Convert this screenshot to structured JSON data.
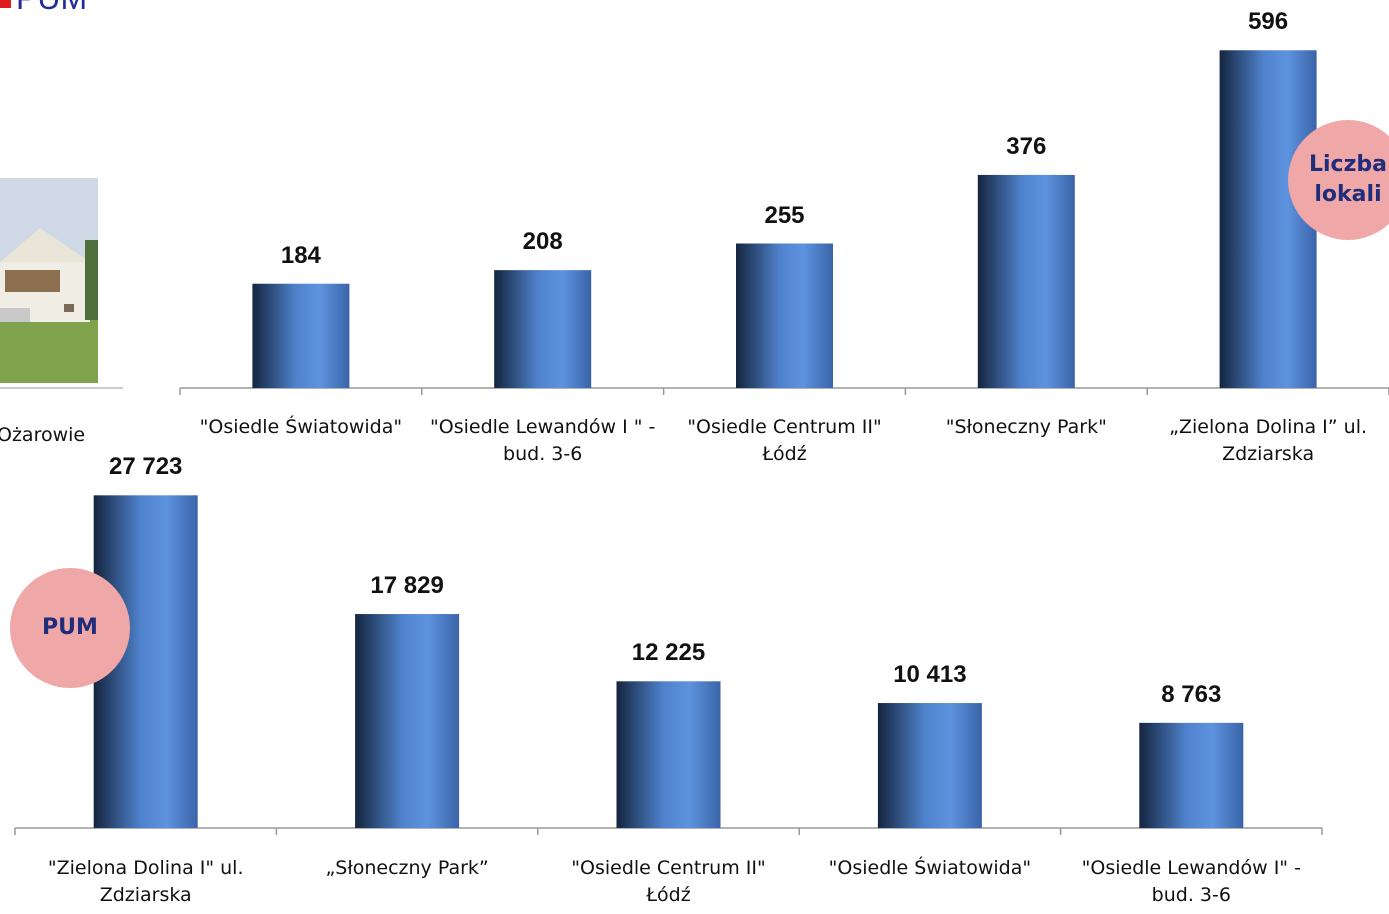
{
  "header": {
    "title": "PUM"
  },
  "photo_caption": "Ożarowie",
  "chart_data": [
    {
      "type": "bar",
      "annotation": "Liczba lokali",
      "categories": [
        "\"Osiedle Światowida\"",
        "\"Osiedle Lewandów I \" - bud. 3-6",
        "\"Osiedle Centrum II\" Łódź",
        "\"Słoneczny Park\"",
        "„Zielona Dolina I” ul. Zdziarska"
      ],
      "values": [
        184,
        208,
        255,
        376,
        596
      ],
      "color": "#4f82cc",
      "ylim": [
        0,
        600
      ]
    },
    {
      "type": "bar",
      "annotation": "PUM",
      "categories": [
        "\"Zielona Dolina I\" ul. Zdziarska",
        "„Słoneczny Park”",
        "\"Osiedle Centrum II\" Łódź",
        "\"Osiedle Światowida\"",
        "\"Osiedle Lewandów I\" - bud. 3-6"
      ],
      "values": [
        27723,
        17829,
        12225,
        10413,
        8763
      ],
      "value_labels": [
        "27 723",
        "17 829",
        "12 225",
        "10 413",
        "8 763"
      ],
      "color": "#4f82cc",
      "ylim": [
        0,
        28000
      ]
    }
  ]
}
